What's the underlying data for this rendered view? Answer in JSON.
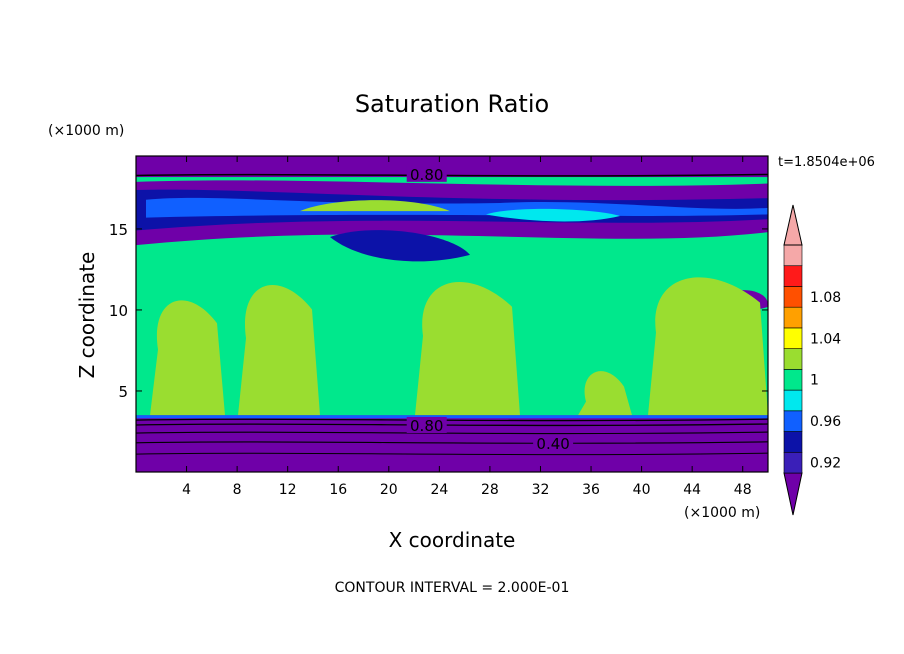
{
  "chart_data": {
    "type": "heatmap",
    "title": "Saturation Ratio",
    "xlabel": "X coordinate",
    "ylabel": "Z coordinate",
    "x_unit_label": "(×1000 m)",
    "y_unit_label": "(×1000 m)",
    "time_label": "t=1.8504e+06",
    "footer": "CONTOUR INTERVAL = 2.000E-01",
    "xlim": [
      0,
      50
    ],
    "ylim": [
      0,
      19.5
    ],
    "x_ticks": [
      4,
      8,
      12,
      16,
      20,
      24,
      28,
      32,
      36,
      40,
      44,
      48
    ],
    "y_ticks": [
      5,
      10,
      15
    ],
    "colorbar": {
      "levels": [
        0.92,
        0.94,
        0.96,
        0.98,
        1.0,
        1.02,
        1.04,
        1.06,
        1.08,
        1.1
      ],
      "tick_labels": [
        "0.92",
        "0.96",
        "1",
        "1.04",
        "1.08"
      ],
      "colors": [
        "#6f00a8",
        "#3a1fb8",
        "#0c12a8",
        "#1060ff",
        "#00e8ee",
        "#00e88c",
        "#9add30",
        "#ffff00",
        "#ffa000",
        "#ff5000",
        "#ff1a1a",
        "#f5a8a8"
      ]
    },
    "contour_labels": [
      {
        "value": "0.80",
        "x": 23,
        "z": 18.4
      },
      {
        "value": "0.80",
        "x": 23,
        "z": 2.9
      },
      {
        "value": "0.40",
        "x": 33,
        "z": 1.8
      }
    ],
    "regions": {
      "top_band": {
        "z_range": [
          18.2,
          19.5
        ],
        "value": "< 0.92"
      },
      "ice_layer": {
        "z_range": [
          13.0,
          17.8
        ],
        "values": "0.92 - 1.0"
      },
      "mid_layer": {
        "z_range": [
          3.5,
          13.0
        ],
        "values": "0.98 - 1.02"
      },
      "bottom_band": {
        "z_range": [
          0,
          3.5
        ],
        "value": "< 0.92"
      }
    }
  }
}
